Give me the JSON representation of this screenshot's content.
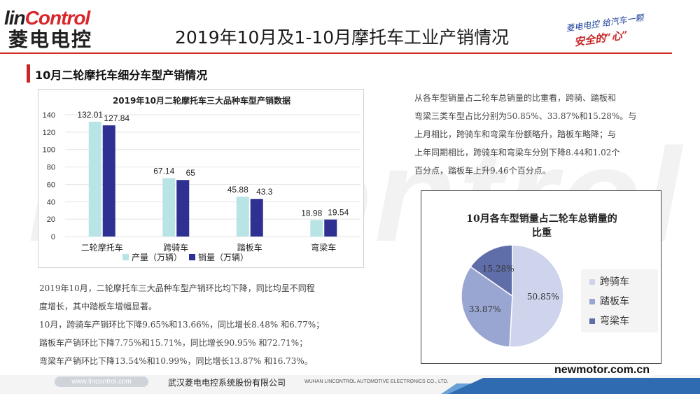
{
  "header": {
    "logo_en_1": "lin",
    "logo_en_2": "Control",
    "logo_cn": "菱电电控",
    "title": "2019年10月及1-10月摩托车工业产销情况",
    "slogan_line1": "菱电电控 给汽车一颗",
    "slogan_line2": "安全的“心”",
    "watermark": "linControl"
  },
  "section": {
    "title": "10月二轮摩托车细分车型产销情况"
  },
  "colors": {
    "production": "#b9e4e6",
    "sales": "#2e3192",
    "accent": "#d32a2a",
    "pie_light": "#cdd4ec",
    "pie_mid": "#9aa6d2",
    "pie_dark": "#5f6ea8"
  },
  "chart_data": [
    {
      "type": "bar",
      "title": "2019年10月二轮摩托车三大品种车型产销数据",
      "categories": [
        "二轮摩托车",
        "跨骑车",
        "踏板车",
        "弯梁车"
      ],
      "series": [
        {
          "name": "产量（万辆）",
          "values": [
            132.01,
            67.14,
            45.88,
            18.98
          ],
          "labels": [
            "132.01",
            "67.14",
            "45.88",
            "18.98"
          ]
        },
        {
          "name": "销量（万辆）",
          "values": [
            127.84,
            65,
            43.3,
            19.54
          ],
          "labels": [
            "127.84",
            "65",
            "43.3",
            "19.54"
          ]
        }
      ],
      "y_ticks": [
        "0",
        "20",
        "40",
        "60",
        "80",
        "100",
        "120",
        "140"
      ],
      "ylim": [
        0,
        140
      ],
      "legend_position": "bottom",
      "grid": true
    },
    {
      "type": "pie",
      "title_line1": "10月各车型销量占二轮车总销量的",
      "title_line2": "比重",
      "slices": [
        {
          "name": "跨骑车",
          "value": 50.85,
          "label": "50.85%"
        },
        {
          "name": "踏板车",
          "value": 33.87,
          "label": "33.87%"
        },
        {
          "name": "弯梁车",
          "value": 15.28,
          "label": "15.28%"
        }
      ],
      "legend_position": "right"
    }
  ],
  "text": {
    "right_lines": [
      "从各车型销量占二轮车总销量的比重看，跨骑、踏板和",
      "弯梁三类车型占比分别为50.85%、33.87%和15.28%。与",
      "上月相比，跨骑车和弯梁车份额略升，踏板车略降；与",
      "上年同期相比，跨骑车和弯梁车分别下降8.44和1.02个",
      "百分点，踏板车上升9.46个百分点。"
    ],
    "left_lines": [
      "2019年10月，二轮摩托车三大品种车型产销环比均下降，同比均呈不同程",
      "度增长，其中踏板车增幅显著。",
      "10月，跨骑车产销环比下降9.65%和13.66%，同比增长8.48% 和6.77%；",
      "踏板车产销环比下降7.75%和15.71%，同比增长90.95% 和72.71%；",
      "弯梁车产销环比下降13.54%和10.99%，同比增长13.87% 和16.73%。"
    ]
  },
  "footer": {
    "url": "www.lincontrol.com",
    "company_cn": "武汉菱电电控系统股份有限公司",
    "company_en": "WUHAN LINCONTROL AUTOMOTIVE ELECTRONICS CO., LTD.",
    "site": "newmotor.com.cn"
  }
}
